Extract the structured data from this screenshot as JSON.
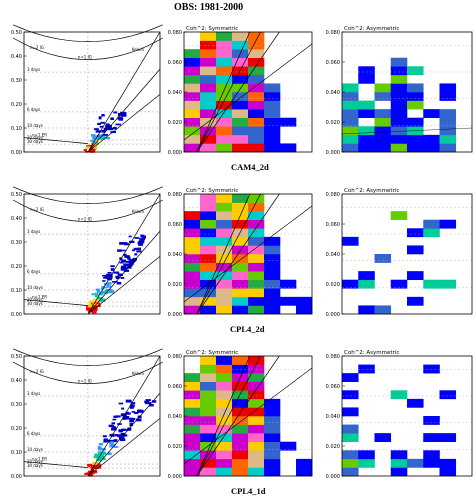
{
  "page": {
    "top_title": "OBS: 1981-2000",
    "row_labels": [
      "CAM4_2d",
      "CPL4_2d",
      "CPL4_1d"
    ]
  },
  "chart_data": [
    {
      "type": "heatmap",
      "panel": "wavenumber-frequency",
      "row": 0,
      "title": "",
      "ylim": [
        0,
        0.5
      ],
      "yticks": [
        "0.00",
        "0.10",
        "0.20",
        "0.30",
        "0.40",
        "0.50"
      ],
      "period_labels": [
        "3 days",
        "6 days",
        "10 days",
        "20 days",
        "30 days"
      ],
      "period_freqs": [
        0.333,
        0.167,
        0.1,
        0.05,
        0.033
      ],
      "dispersion_labels": [
        "n=1 IG",
        "n=2 IG",
        "Kelvin",
        "n=1 ER"
      ]
    },
    {
      "type": "heatmap",
      "panel": "coherence",
      "row": 0,
      "title": "Coh^2: Symmetric",
      "ylim": [
        0,
        0.09
      ],
      "yticks": [
        "0.000",
        "0.020",
        "0.040",
        "0.060",
        "0.080"
      ],
      "colors": [
        "#0000ff",
        "#3366cc",
        "#00cccc",
        "#22aa44",
        "#66cc00",
        "#ffcc00",
        "#ff6600",
        "#ee0000",
        "#cc00cc",
        "#ff66cc",
        "#deb887"
      ]
    },
    {
      "type": "heatmap",
      "panel": "coherence",
      "row": 0,
      "title": "Coh^2: Asymmetric",
      "ylim": [
        0,
        0.09
      ],
      "yticks": [
        "0.000",
        "0.020",
        "0.040",
        "0.060",
        "0.080"
      ]
    },
    {
      "type": "heatmap",
      "panel": "wavenumber-frequency",
      "row": 1,
      "ylim": [
        0,
        0.5
      ],
      "yticks": [
        "0.00",
        "0.10",
        "0.20",
        "0.30",
        "0.40",
        "0.50"
      ]
    },
    {
      "type": "heatmap",
      "panel": "coherence",
      "row": 1,
      "title": "Coh^2: Symmetric",
      "ylim": [
        0,
        0.09
      ],
      "yticks": [
        "0.000",
        "0.020",
        "0.040",
        "0.060",
        "0.080"
      ]
    },
    {
      "type": "heatmap",
      "panel": "coherence",
      "row": 1,
      "title": "Coh^2: Asymmetric",
      "ylim": [
        0,
        0.09
      ],
      "yticks": [
        "0.000",
        "0.020",
        "0.040",
        "0.060",
        "0.080"
      ]
    },
    {
      "type": "heatmap",
      "panel": "wavenumber-frequency",
      "row": 2,
      "ylim": [
        0,
        0.5
      ],
      "yticks": [
        "0.00",
        "0.10",
        "0.20",
        "0.30",
        "0.40",
        "0.50"
      ]
    },
    {
      "type": "heatmap",
      "panel": "coherence",
      "row": 2,
      "title": "Coh^2: Symmetric",
      "ylim": [
        0,
        0.09
      ],
      "yticks": [
        "0.000",
        "0.020",
        "0.040",
        "0.060",
        "0.080"
      ]
    },
    {
      "type": "heatmap",
      "panel": "coherence",
      "row": 2,
      "title": "Coh^2: Asymmetric",
      "ylim": [
        0,
        0.09
      ],
      "yticks": [
        "0.000",
        "0.020",
        "0.040",
        "0.060",
        "0.080"
      ]
    }
  ]
}
